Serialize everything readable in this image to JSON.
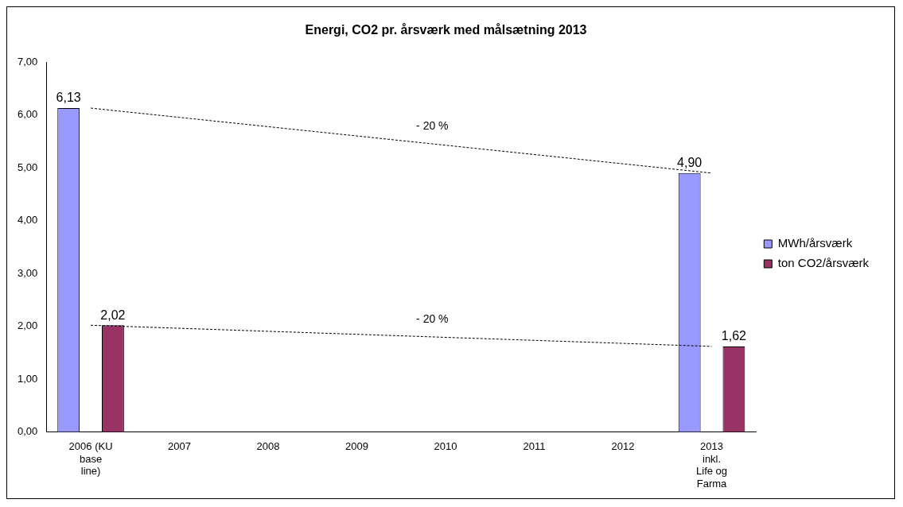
{
  "chart_data": {
    "type": "bar",
    "title": "Energi, CO2 pr. årsværk med målsætning 2013",
    "categories": [
      "2006 (KU base line)",
      "2007",
      "2008",
      "2009",
      "2010",
      "2011",
      "2012",
      "2013 inkl. Life og Farma"
    ],
    "series": [
      {
        "name": "MWh/årsværk",
        "color": "#9999ff",
        "values": [
          6.13,
          null,
          null,
          null,
          null,
          null,
          null,
          4.9
        ],
        "value_labels": [
          "6,13",
          null,
          null,
          null,
          null,
          null,
          null,
          "4,90"
        ]
      },
      {
        "name": "ton CO2/årsværk",
        "color": "#993366",
        "values": [
          2.02,
          null,
          null,
          null,
          null,
          null,
          null,
          1.62
        ],
        "value_labels": [
          "2,02",
          null,
          null,
          null,
          null,
          null,
          null,
          "1,62"
        ]
      },
      {
        "type": "line",
        "color": "#000000",
        "line_style": "dashed",
        "marker": "none",
        "values": [
          6.13,
          null,
          null,
          null,
          null,
          null,
          null,
          4.9
        ]
      },
      {
        "type": "line",
        "color": "#000000",
        "line_style": "dashed",
        "marker": "none",
        "values": [
          2.02,
          null,
          null,
          null,
          null,
          null,
          null,
          1.62
        ]
      }
    ],
    "ylim": [
      0,
      7
    ],
    "yticks": [
      {
        "value": 0,
        "label": "0,00"
      },
      {
        "value": 1,
        "label": "1,00"
      },
      {
        "value": 2,
        "label": "2,00"
      },
      {
        "value": 3,
        "label": "3,00"
      },
      {
        "value": 4,
        "label": "4,00"
      },
      {
        "value": 5,
        "label": "5,00"
      },
      {
        "value": 6,
        "label": "6,00"
      },
      {
        "value": 7,
        "label": "7,00"
      }
    ],
    "annotations": [
      "- 20 %",
      "- 20 %"
    ],
    "grid": false,
    "legend": "right"
  }
}
